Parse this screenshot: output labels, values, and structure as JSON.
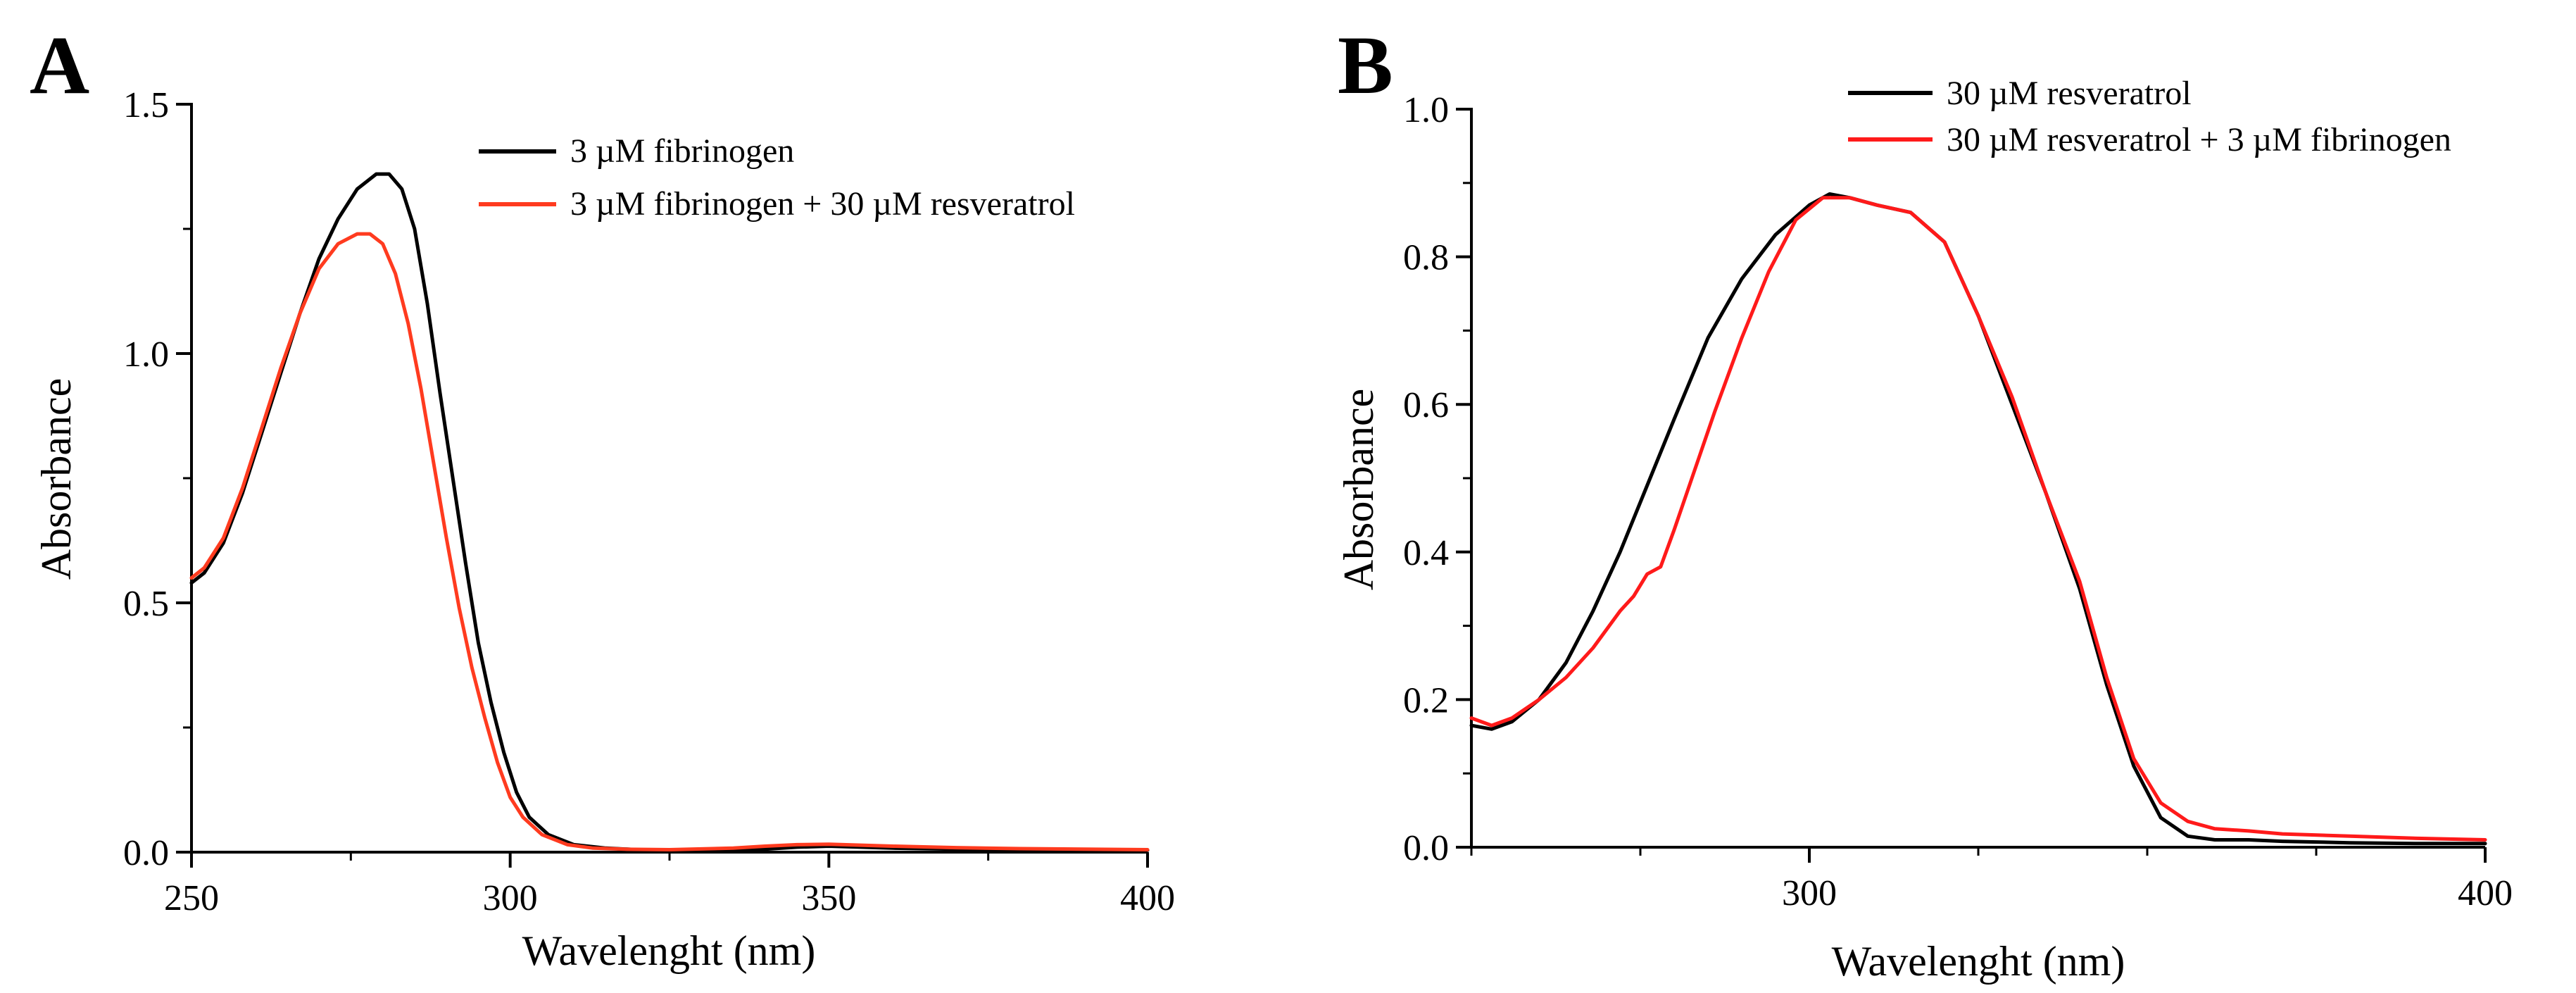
{
  "panels": [
    {
      "label": "A",
      "xlabel": "Wavelenght (nm)",
      "ylabel": "Absorbance",
      "legend": [
        {
          "text": "3 µM fibrinogen",
          "color": "#000000"
        },
        {
          "text": "3 µM fibrinogen + 30 µM resveratrol",
          "color": "#ff3b1f"
        }
      ]
    },
    {
      "label": "B",
      "xlabel": "Wavelenght (nm)",
      "ylabel": "Absorbance",
      "legend": [
        {
          "text": "30 µM resveratrol",
          "color": "#000000"
        },
        {
          "text": "30 µM resveratrol + 3 µM fibrinogen",
          "color": "#ff1a1a"
        }
      ]
    }
  ],
  "chart_data": [
    {
      "type": "line",
      "panel": "A",
      "xlabel": "Wavelenght (nm)",
      "ylabel": "Absorbance",
      "xlim": [
        250,
        400
      ],
      "ylim": [
        0,
        1.5
      ],
      "xticks": [
        250,
        300,
        350,
        400
      ],
      "yticks": [
        0.0,
        0.5,
        1.0,
        1.5
      ],
      "xtick_labels": [
        "250",
        "300",
        "350",
        "400"
      ],
      "ytick_labels": [
        "0.0",
        "0.5",
        "1.0",
        "1.5"
      ],
      "grid": false,
      "legend_position": "top-right",
      "series": [
        {
          "name": "3 µM fibrinogen",
          "color": "#000000",
          "x": [
            250,
            252,
            255,
            258,
            261,
            264,
            267,
            270,
            273,
            276,
            279,
            281,
            283,
            285,
            287,
            289,
            291,
            293,
            295,
            297,
            299,
            301,
            303,
            306,
            310,
            315,
            320,
            330,
            340,
            345,
            350,
            355,
            360,
            370,
            380,
            390,
            400
          ],
          "y": [
            0.54,
            0.56,
            0.62,
            0.72,
            0.84,
            0.96,
            1.08,
            1.19,
            1.27,
            1.33,
            1.36,
            1.36,
            1.33,
            1.25,
            1.1,
            0.92,
            0.75,
            0.58,
            0.42,
            0.3,
            0.2,
            0.12,
            0.07,
            0.035,
            0.015,
            0.008,
            0.005,
            0.004,
            0.006,
            0.01,
            0.012,
            0.01,
            0.008,
            0.006,
            0.005,
            0.004,
            0.004
          ]
        },
        {
          "name": "3 µM fibrinogen + 30 µM resveratrol",
          "color": "#ff3b1f",
          "x": [
            250,
            252,
            255,
            258,
            261,
            264,
            267,
            270,
            273,
            276,
            278,
            280,
            282,
            284,
            286,
            288,
            290,
            292,
            294,
            296,
            298,
            300,
            302,
            305,
            309,
            313,
            318,
            325,
            335,
            340,
            345,
            350,
            355,
            360,
            370,
            380,
            390,
            400
          ],
          "y": [
            0.55,
            0.57,
            0.63,
            0.73,
            0.85,
            0.97,
            1.08,
            1.17,
            1.22,
            1.24,
            1.24,
            1.22,
            1.16,
            1.06,
            0.93,
            0.78,
            0.63,
            0.49,
            0.37,
            0.27,
            0.18,
            0.11,
            0.07,
            0.035,
            0.015,
            0.008,
            0.006,
            0.005,
            0.008,
            0.012,
            0.015,
            0.016,
            0.014,
            0.012,
            0.009,
            0.007,
            0.006,
            0.005
          ]
        }
      ]
    },
    {
      "type": "line",
      "panel": "B",
      "xlabel": "Wavelenght (nm)",
      "ylabel": "Absorbance",
      "xlim": [
        250,
        400
      ],
      "ylim": [
        0,
        1.0
      ],
      "xticks": [
        300,
        400
      ],
      "yticks": [
        0.0,
        0.2,
        0.4,
        0.6,
        0.8,
        1.0
      ],
      "xtick_labels": [
        "300",
        "400"
      ],
      "ytick_labels": [
        "0.0",
        "0.2",
        "0.4",
        "0.6",
        "0.8",
        "1.0"
      ],
      "grid": false,
      "legend_position": "top-right",
      "series": [
        {
          "name": "30 µM resveratrol",
          "color": "#000000",
          "x": [
            250,
            253,
            256,
            260,
            264,
            268,
            272,
            276,
            280,
            285,
            290,
            295,
            300,
            303,
            306,
            310,
            315,
            320,
            325,
            330,
            335,
            340,
            344,
            348,
            352,
            356,
            360,
            365,
            370,
            380,
            390,
            400
          ],
          "y": [
            0.165,
            0.16,
            0.17,
            0.2,
            0.25,
            0.32,
            0.4,
            0.49,
            0.58,
            0.69,
            0.77,
            0.83,
            0.87,
            0.885,
            0.88,
            0.87,
            0.86,
            0.82,
            0.72,
            0.6,
            0.48,
            0.35,
            0.22,
            0.11,
            0.04,
            0.015,
            0.01,
            0.01,
            0.008,
            0.006,
            0.005,
            0.005
          ]
        },
        {
          "name": "30 µM resveratrol + 3 µM fibrinogen",
          "color": "#ff1a1a",
          "x": [
            250,
            253,
            256,
            260,
            264,
            268,
            272,
            274,
            276,
            278,
            280,
            283,
            286,
            290,
            294,
            298,
            302,
            306,
            310,
            315,
            320,
            325,
            330,
            335,
            340,
            344,
            348,
            352,
            356,
            360,
            365,
            370,
            380,
            390,
            400
          ],
          "y": [
            0.175,
            0.165,
            0.175,
            0.2,
            0.23,
            0.27,
            0.32,
            0.34,
            0.37,
            0.38,
            0.43,
            0.51,
            0.59,
            0.69,
            0.78,
            0.85,
            0.88,
            0.88,
            0.87,
            0.86,
            0.82,
            0.72,
            0.61,
            0.48,
            0.36,
            0.23,
            0.12,
            0.06,
            0.035,
            0.025,
            0.022,
            0.018,
            0.015,
            0.012,
            0.01
          ]
        }
      ]
    }
  ]
}
